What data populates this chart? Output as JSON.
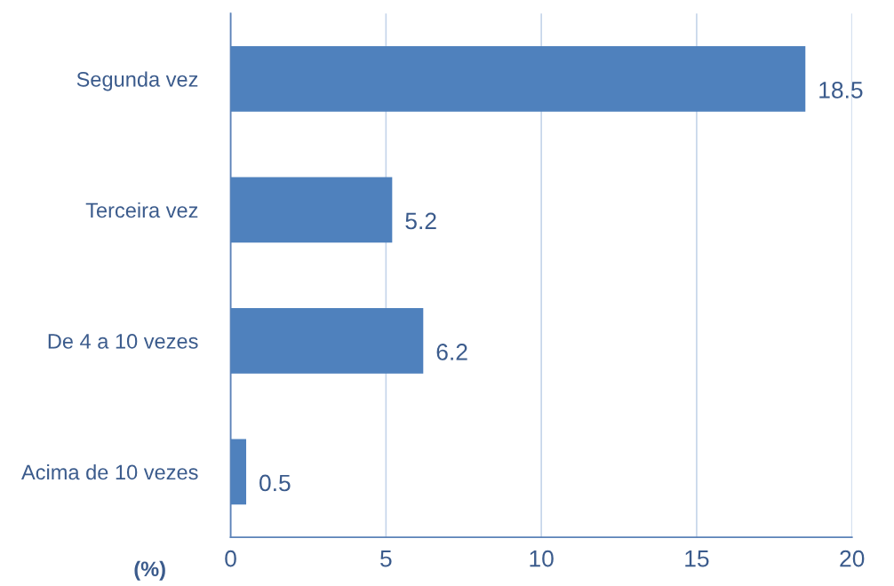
{
  "chart_data": {
    "type": "bar",
    "orientation": "horizontal",
    "xlabel": "(%)",
    "categories": [
      "Segunda vez",
      "Terceira vez",
      "De 4 a 10 vezes",
      "Acima de 10 vezes"
    ],
    "values": [
      18.5,
      5.2,
      6.2,
      0.5
    ],
    "color": "#4f81bd",
    "xlim": [
      0,
      20
    ],
    "xticks": [
      0,
      5,
      10,
      15,
      20
    ],
    "grid": "x",
    "data_labels": true,
    "legend": false
  }
}
